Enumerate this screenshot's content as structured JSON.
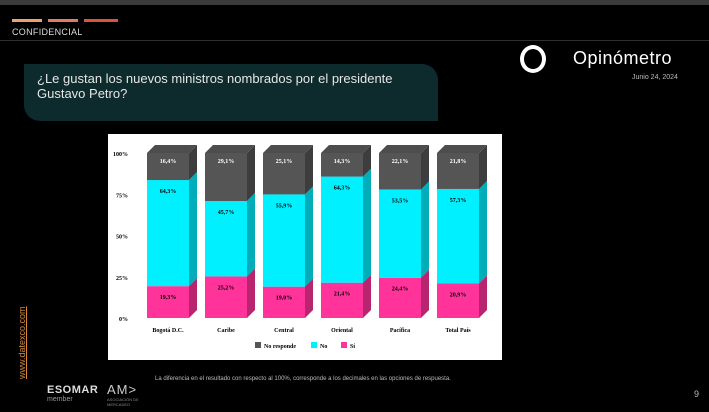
{
  "header": {
    "confidential": "CONFIDENCIAL",
    "accent_colors": [
      "#f0a070",
      "#e07a6a",
      "#d9543e"
    ]
  },
  "brand": {
    "name": "Opinómetro",
    "date": "Junio 24, 2024"
  },
  "question": "¿Le gustan los nuevos ministros nombrados por el presidente Gustavo Petro?",
  "side_link": "www.datexco.com",
  "footer": {
    "note": "La diferencia en el resultado con respecto al 100%, corresponde a los decimales en las opciones de respuesta.",
    "esomar": "ESOMAR",
    "esomar_sub": "member",
    "amb": "AM>",
    "amb_sub": "ASOCIACIÓN DE MERCADEO",
    "page": "9"
  },
  "chart_data": {
    "type": "bar",
    "stacked": true,
    "categories": [
      "Bogotá D.C.",
      "Caribe",
      "Central",
      "Oriental",
      "Pacífica",
      "Total País"
    ],
    "y_ticks": [
      "0%",
      "25%",
      "50%",
      "75%",
      "100%"
    ],
    "ylim": [
      0,
      100
    ],
    "series": [
      {
        "name": "Sí",
        "color": "#ff3399",
        "values": [
          19.3,
          25.2,
          19.0,
          21.4,
          24.4,
          20.9
        ],
        "labels": [
          "19,3%",
          "25,2%",
          "19,0%",
          "21,4%",
          "24,4%",
          "20,9%"
        ]
      },
      {
        "name": "No",
        "color": "#00f0ff",
        "values": [
          64.3,
          45.7,
          55.9,
          64.3,
          53.5,
          57.3
        ],
        "labels": [
          "64,3%",
          "45,7%",
          "55,9%",
          "64,3%",
          "53,5%",
          "57,3%"
        ]
      },
      {
        "name": "No responde",
        "color": "#555555",
        "values": [
          16.4,
          29.1,
          25.1,
          14.3,
          22.1,
          21.8
        ],
        "labels": [
          "16,4%",
          "29,1%",
          "25,1%",
          "14,3%",
          "22,1%",
          "21,8%"
        ]
      }
    ],
    "legend_order": [
      "No responde",
      "No",
      "Sí"
    ],
    "legend_position": "bottom",
    "grid": false
  }
}
